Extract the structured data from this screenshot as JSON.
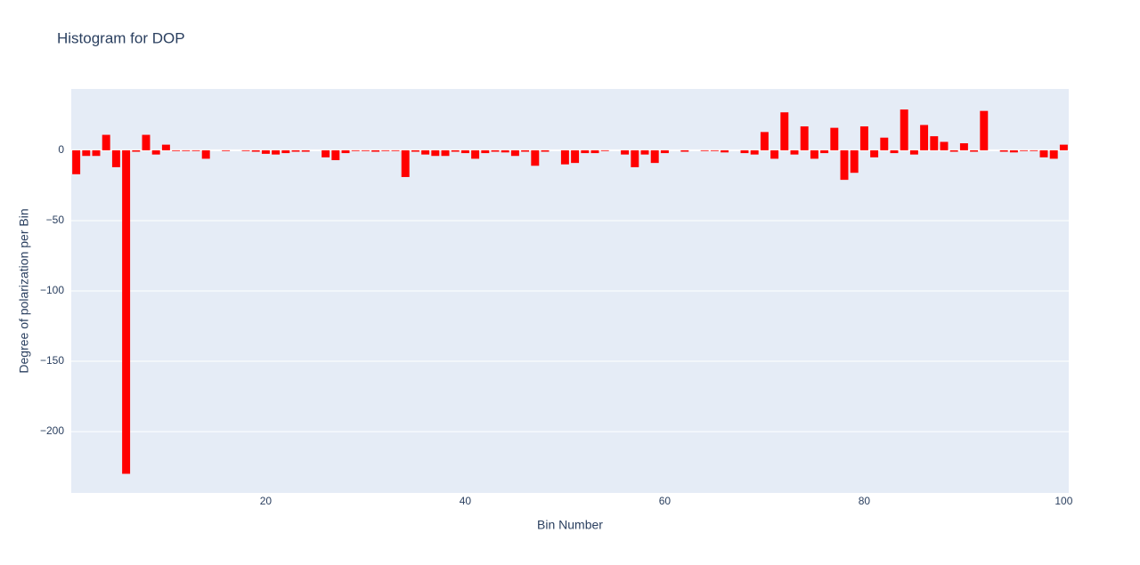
{
  "chart_data": {
    "type": "bar",
    "title": "Histogram for DOP",
    "xlabel": "Bin Number",
    "ylabel": "Degree of polarization per Bin",
    "x": [
      1,
      2,
      3,
      4,
      5,
      6,
      7,
      8,
      9,
      10,
      11,
      12,
      13,
      14,
      15,
      16,
      17,
      18,
      19,
      20,
      21,
      22,
      23,
      24,
      25,
      26,
      27,
      28,
      29,
      30,
      31,
      32,
      33,
      34,
      35,
      36,
      37,
      38,
      39,
      40,
      41,
      42,
      43,
      44,
      45,
      46,
      47,
      48,
      49,
      50,
      51,
      52,
      53,
      54,
      55,
      56,
      57,
      58,
      59,
      60,
      61,
      62,
      63,
      64,
      65,
      66,
      67,
      68,
      69,
      70,
      71,
      72,
      73,
      74,
      75,
      76,
      77,
      78,
      79,
      80,
      81,
      82,
      83,
      84,
      85,
      86,
      87,
      88,
      89,
      90,
      91,
      92,
      93,
      94,
      95,
      96,
      97,
      98,
      99,
      100
    ],
    "values": [
      -17,
      -4,
      -4,
      11,
      -12,
      -230,
      -1,
      11,
      -3,
      4,
      -0.5,
      -0.5,
      -0.5,
      -6,
      0,
      -0.5,
      0,
      -0.5,
      -1,
      -2.5,
      -3,
      -2,
      -1,
      -1,
      0,
      -5,
      -7,
      -2,
      -0.5,
      -0.5,
      -1,
      -0.5,
      -0.5,
      -19,
      -1,
      -3,
      -4,
      -4,
      -1,
      -2,
      -6,
      -2,
      -1,
      -1.5,
      -4,
      -1,
      -11,
      -1,
      0,
      -10,
      -9,
      -2,
      -2,
      -0.5,
      0,
      -3,
      -12,
      -3,
      -9,
      -2,
      0,
      -1,
      0,
      -0.5,
      -0.5,
      -1.5,
      0,
      -2,
      -3,
      13,
      -6,
      27,
      -3,
      17,
      -6,
      -2,
      16,
      -21,
      -16,
      17,
      -5,
      9,
      -2,
      29,
      -3,
      18,
      10,
      6,
      -1,
      5,
      -1,
      28,
      0,
      -1,
      -1.5,
      -0.5,
      -0.5,
      -5,
      -6,
      4
    ],
    "color": "#ff0000",
    "xlim": [
      0.5,
      100.5
    ],
    "xticks": [
      20,
      40,
      60,
      80,
      100
    ],
    "ylim": [
      -243.6,
      43.6
    ],
    "yticks": [
      {
        "value": -200,
        "label": "−200"
      },
      {
        "value": -150,
        "label": "−150"
      },
      {
        "value": -100,
        "label": "−100"
      },
      {
        "value": -50,
        "label": "−50"
      },
      0
    ],
    "grid": true
  }
}
